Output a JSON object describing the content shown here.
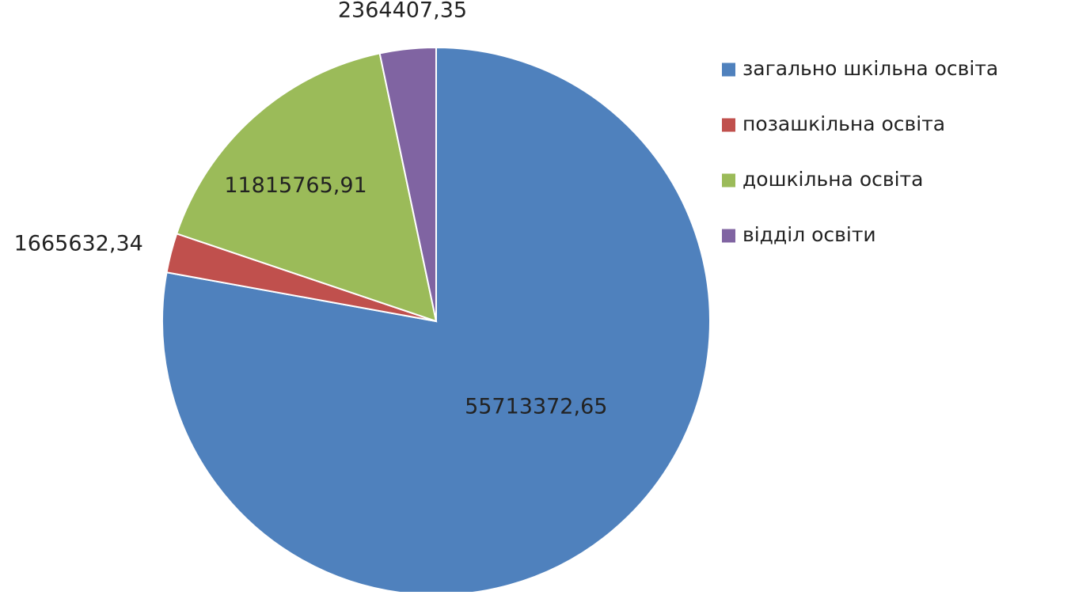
{
  "chart_data": {
    "type": "pie",
    "title": "",
    "legend_position": "right",
    "series": [
      {
        "values": [
          55713372.65,
          1665632.34,
          11815765.91,
          2364407.35
        ],
        "labels": [
          "55713372,65",
          "1665632,34",
          "11815765,91",
          "2364407,35"
        ]
      }
    ],
    "categories": [
      "загально шкільна освіта",
      "позашкільна освіта",
      "дошкільна освіта",
      "відділ освіти"
    ],
    "colors": [
      "#4F81BD",
      "#C0504D",
      "#9BBB59",
      "#8064A2"
    ]
  }
}
